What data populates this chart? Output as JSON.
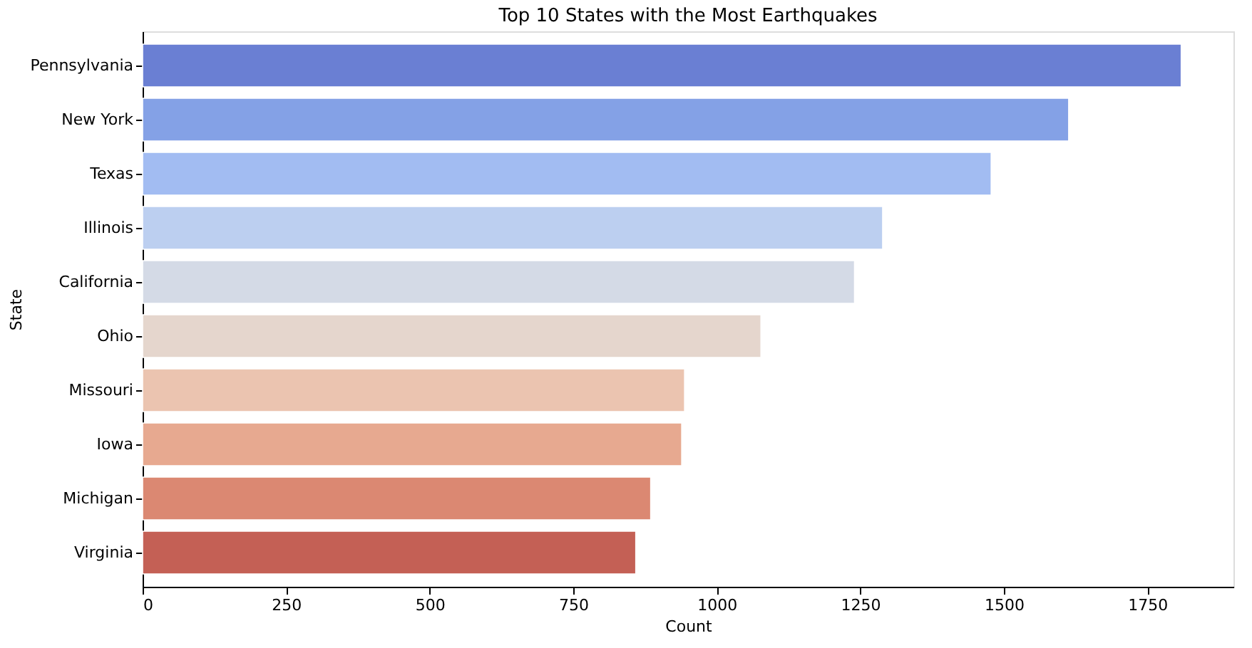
{
  "chart_data": {
    "type": "bar",
    "orientation": "horizontal",
    "title": "Top 10 States with the Most Earthquakes",
    "xlabel": "Count",
    "ylabel": "State",
    "categories": [
      "Pennsylvania",
      "New York",
      "Texas",
      "Illinois",
      "California",
      "Ohio",
      "Missouri",
      "Iowa",
      "Michigan",
      "Virginia"
    ],
    "values": [
      1809,
      1613,
      1478,
      1289,
      1240,
      1077,
      944,
      939,
      885,
      859
    ],
    "colors": [
      "#6a7fd3",
      "#84a1e6",
      "#a2bcf2",
      "#bccff0",
      "#d4dae6",
      "#e5d6cd",
      "#ebc4b0",
      "#e7a990",
      "#db8872",
      "#c46055"
    ],
    "xlim": [
      0,
      1900
    ],
    "xticks": [
      0,
      250,
      500,
      750,
      1000,
      1250,
      1500,
      1750
    ],
    "grid": false
  }
}
